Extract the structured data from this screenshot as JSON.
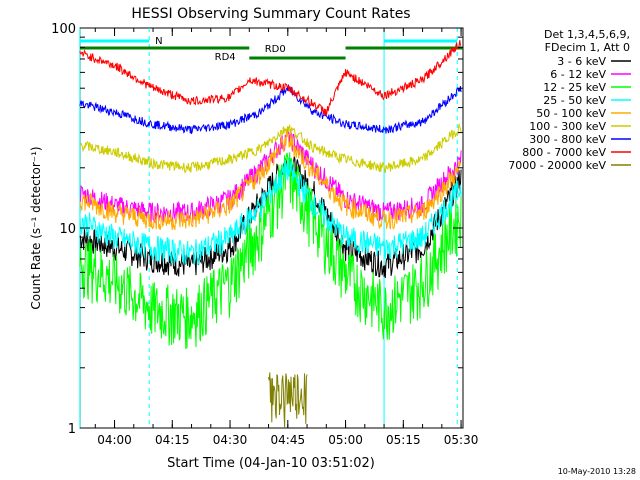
{
  "chart_data": {
    "type": "line",
    "title": "HESSI Observing Summary Count Rates",
    "xlabel": "Start Time (04-Jan-10 03:51:02)",
    "ylabel": "Count Rate (s⁻¹ detector⁻¹)",
    "y_scale": "log",
    "ylim": [
      1,
      100
    ],
    "xlim": [
      "03:51:02",
      "05:30:30"
    ],
    "x_ticks": [
      "04:00",
      "04:15",
      "04:30",
      "04:45",
      "05:00",
      "05:15",
      "05:30"
    ],
    "y_ticks": [
      "1",
      "10",
      "100"
    ],
    "grid": false,
    "legend_position": "right",
    "legend_header": [
      "Det 1,3,4,5,6,9,",
      "FDecim 1, Att 0"
    ],
    "footer_date": "10-May-2010 13:28",
    "series": [
      {
        "name": "3 - 6 keV",
        "color": "#000000",
        "x": [
          "03:51",
          "04:00",
          "04:10",
          "04:20",
          "04:30",
          "04:38",
          "04:45",
          "04:52",
          "05:00",
          "05:10",
          "05:20",
          "05:30"
        ],
        "y": [
          9,
          8,
          7,
          6.5,
          8,
          14,
          22,
          15,
          8,
          6.5,
          8,
          18
        ]
      },
      {
        "name": "6 - 12 keV",
        "color": "#ff00ff",
        "x": [
          "03:51",
          "04:00",
          "04:10",
          "04:20",
          "04:30",
          "04:38",
          "04:45",
          "04:52",
          "05:00",
          "05:10",
          "05:20",
          "05:30"
        ],
        "y": [
          15,
          13,
          12,
          12,
          14,
          20,
          29,
          20,
          14,
          12,
          13,
          22
        ]
      },
      {
        "name": "12 - 25 keV",
        "color": "#00ff00",
        "x": [
          "03:51",
          "04:00",
          "04:10",
          "04:20",
          "04:30",
          "04:38",
          "04:45",
          "04:52",
          "05:00",
          "05:10",
          "05:20",
          "05:30"
        ],
        "y": [
          7,
          5.5,
          4,
          3.7,
          5.5,
          10,
          19,
          11,
          6,
          4,
          5.5,
          12
        ]
      },
      {
        "name": "25 - 50 keV",
        "color": "#00ffff",
        "x": [
          "03:51",
          "04:00",
          "04:10",
          "04:20",
          "04:30",
          "04:38",
          "04:45",
          "04:52",
          "05:00",
          "05:10",
          "05:20",
          "05:30"
        ],
        "y": [
          11,
          9,
          8,
          7.5,
          9,
          13,
          20,
          13,
          9,
          8,
          9,
          16
        ]
      },
      {
        "name": "50 - 100 keV",
        "color": "#ffaa00",
        "x": [
          "03:51",
          "04:00",
          "04:10",
          "04:20",
          "04:30",
          "04:38",
          "04:45",
          "04:52",
          "05:00",
          "05:10",
          "05:20",
          "05:30"
        ],
        "y": [
          14,
          12,
          11,
          11,
          13,
          19,
          28,
          19,
          13,
          11,
          12,
          20
        ]
      },
      {
        "name": "100 - 300 keV",
        "color": "#cccc00",
        "x": [
          "03:51",
          "04:00",
          "04:10",
          "04:20",
          "04:30",
          "04:38",
          "04:45",
          "04:52",
          "05:00",
          "05:10",
          "05:20",
          "05:30"
        ],
        "y": [
          26,
          24,
          21,
          20,
          22,
          25,
          32,
          25,
          22,
          20,
          22,
          32
        ]
      },
      {
        "name": "300 - 800 keV",
        "color": "#0000ff",
        "x": [
          "03:51",
          "04:00",
          "04:10",
          "04:20",
          "04:30",
          "04:38",
          "04:45",
          "04:52",
          "05:00",
          "05:10",
          "05:20",
          "05:30"
        ],
        "y": [
          42,
          38,
          33,
          31,
          33,
          38,
          50,
          38,
          33,
          31,
          34,
          50
        ]
      },
      {
        "name": "800 - 7000 keV",
        "color": "#ff0000",
        "x": [
          "03:51",
          "04:00",
          "04:10",
          "04:20",
          "04:30",
          "04:35",
          "04:45",
          "04:55",
          "05:00",
          "05:10",
          "05:20",
          "05:30"
        ],
        "y": [
          75,
          65,
          50,
          43,
          45,
          55,
          50,
          38,
          60,
          46,
          55,
          85
        ]
      },
      {
        "name": "7000 - 20000 keV",
        "color": "#808000",
        "x": [
          "04:40",
          "04:42",
          "04:44",
          "04:46",
          "04:48",
          "04:50"
        ],
        "y": [
          1.6,
          1.6,
          1.6,
          1.6,
          1.6,
          1.6
        ]
      }
    ],
    "annotations": [
      {
        "label": "N",
        "color": "#00ffff",
        "x_start": "03:51",
        "x_end": "04:09",
        "x_end_2": "05:10",
        "x_end_3": "05:29"
      },
      {
        "label": "RD0",
        "color": "#008000"
      },
      {
        "label": "RD4",
        "color": "#008000"
      }
    ]
  }
}
